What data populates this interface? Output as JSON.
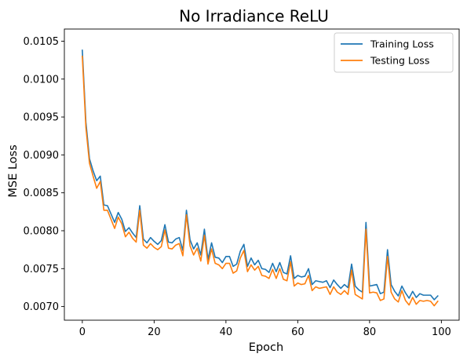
{
  "chart_data": {
    "type": "line",
    "title": "No Irradiance ReLU",
    "xlabel": "Epoch",
    "ylabel": "MSE Loss",
    "xlim": [
      -5,
      104.95
    ],
    "ylim": [
      0.00682,
      0.01066
    ],
    "xticks": [
      0,
      20,
      40,
      60,
      80,
      100
    ],
    "xtick_labels": [
      "0",
      "20",
      "40",
      "60",
      "80",
      "100"
    ],
    "yticks": [
      0.007,
      0.0075,
      0.008,
      0.0085,
      0.009,
      0.0095,
      0.01,
      0.0105
    ],
    "ytick_labels": [
      "0.0070",
      "0.0075",
      "0.0080",
      "0.0085",
      "0.0090",
      "0.0095",
      "0.0100",
      "0.0105"
    ],
    "grid": false,
    "legend_position": "top-right",
    "x": [
      0,
      1,
      2,
      3,
      4,
      5,
      6,
      7,
      8,
      9,
      10,
      11,
      12,
      13,
      14,
      15,
      16,
      17,
      18,
      19,
      20,
      21,
      22,
      23,
      24,
      25,
      26,
      27,
      28,
      29,
      30,
      31,
      32,
      33,
      34,
      35,
      36,
      37,
      38,
      39,
      40,
      41,
      42,
      43,
      44,
      45,
      46,
      47,
      48,
      49,
      50,
      51,
      52,
      53,
      54,
      55,
      56,
      57,
      58,
      59,
      60,
      61,
      62,
      63,
      64,
      65,
      66,
      67,
      68,
      69,
      70,
      71,
      72,
      73,
      74,
      75,
      76,
      77,
      78,
      79,
      80,
      81,
      82,
      83,
      84,
      85,
      86,
      87,
      88,
      89,
      90,
      91,
      92,
      93,
      94,
      95,
      96,
      97,
      98,
      99
    ],
    "series": [
      {
        "name": "Training Loss",
        "color": "#1f77b4",
        "values": [
          0.01038,
          0.00943,
          0.00895,
          0.00879,
          0.00866,
          0.00872,
          0.00834,
          0.00833,
          0.00822,
          0.00811,
          0.00824,
          0.00815,
          0.00799,
          0.00804,
          0.00797,
          0.00791,
          0.00833,
          0.00789,
          0.00784,
          0.00791,
          0.00786,
          0.00782,
          0.00787,
          0.00808,
          0.00785,
          0.00784,
          0.00789,
          0.00791,
          0.00774,
          0.00827,
          0.00788,
          0.00776,
          0.00784,
          0.00768,
          0.00802,
          0.00762,
          0.00784,
          0.00765,
          0.00764,
          0.00758,
          0.00766,
          0.00766,
          0.00753,
          0.00756,
          0.00773,
          0.00782,
          0.00753,
          0.00764,
          0.00755,
          0.00761,
          0.0075,
          0.00749,
          0.00745,
          0.00757,
          0.00746,
          0.00758,
          0.00745,
          0.00743,
          0.00767,
          0.00737,
          0.00741,
          0.00739,
          0.0074,
          0.0075,
          0.00729,
          0.00734,
          0.00733,
          0.00732,
          0.00734,
          0.00725,
          0.00735,
          0.00729,
          0.00724,
          0.00729,
          0.00725,
          0.00756,
          0.00727,
          0.00722,
          0.00719,
          0.00811,
          0.00727,
          0.00728,
          0.00729,
          0.00717,
          0.00719,
          0.00775,
          0.00729,
          0.0072,
          0.00714,
          0.00727,
          0.00718,
          0.00711,
          0.0072,
          0.00712,
          0.00717,
          0.00715,
          0.00715,
          0.00715,
          0.00709,
          0.00714
        ]
      },
      {
        "name": "Testing Loss",
        "color": "#ff7f0e",
        "values": [
          0.0103,
          0.00936,
          0.00889,
          0.00872,
          0.00856,
          0.00865,
          0.00827,
          0.00827,
          0.00815,
          0.00803,
          0.00818,
          0.00809,
          0.00792,
          0.00798,
          0.0079,
          0.00785,
          0.00827,
          0.00781,
          0.00777,
          0.00783,
          0.00778,
          0.00775,
          0.00779,
          0.00801,
          0.00777,
          0.00776,
          0.00781,
          0.00783,
          0.00767,
          0.00821,
          0.0078,
          0.00768,
          0.00777,
          0.0076,
          0.00794,
          0.00756,
          0.00776,
          0.00757,
          0.00755,
          0.0075,
          0.00757,
          0.00757,
          0.00744,
          0.00747,
          0.00764,
          0.00774,
          0.00746,
          0.00755,
          0.00748,
          0.00753,
          0.00741,
          0.0074,
          0.00737,
          0.00749,
          0.00737,
          0.0075,
          0.00736,
          0.00734,
          0.00759,
          0.00727,
          0.00731,
          0.00729,
          0.0073,
          0.00741,
          0.00721,
          0.00726,
          0.00724,
          0.00725,
          0.00726,
          0.00716,
          0.00726,
          0.00719,
          0.00716,
          0.00721,
          0.00716,
          0.00748,
          0.00716,
          0.00713,
          0.0071,
          0.00802,
          0.00718,
          0.00719,
          0.00718,
          0.00708,
          0.0071,
          0.00766,
          0.00719,
          0.0071,
          0.00706,
          0.00721,
          0.00708,
          0.00702,
          0.00712,
          0.00703,
          0.00708,
          0.00707,
          0.00708,
          0.00707,
          0.00701,
          0.00707
        ]
      }
    ]
  }
}
